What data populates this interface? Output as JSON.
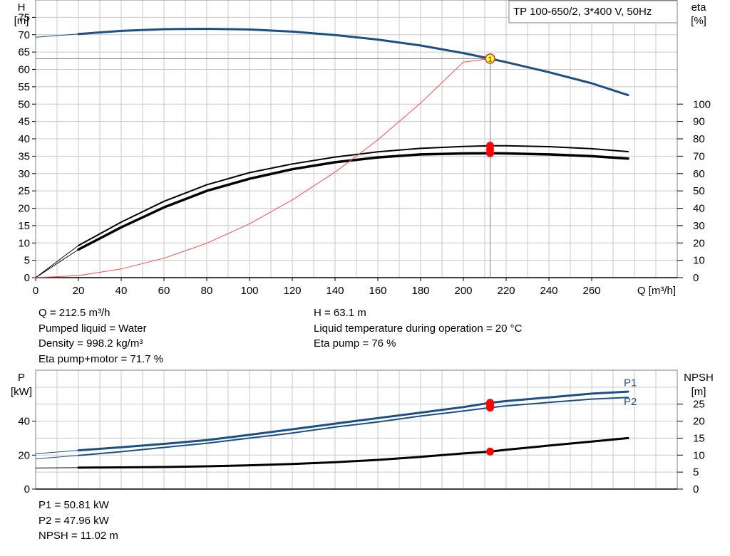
{
  "legend_box": "TP 100-650/2, 3*400 V, 50Hz",
  "colors": {
    "blue": "#1c4f86",
    "black": "#000000",
    "red": "#ff0000",
    "system": "#ff4a4a",
    "op_point": "#ffff33",
    "grid": "#c8c8c8"
  },
  "operating_point_info": {
    "col1": [
      "Q = 212.5 m³/h",
      "Pumped liquid = Water",
      "Density = 998.2 kg/m³",
      "Eta pump+motor = 71.7 %"
    ],
    "col2": [
      "H = 63.1 m",
      "Liquid temperature during operation = 20 °C",
      "Eta pump = 76 %"
    ]
  },
  "power_info": [
    "P1 = 50.81 kW",
    "P2 = 47.96 kW",
    "NPSH = 11.02 m"
  ],
  "chart_data": [
    {
      "type": "line",
      "title": "",
      "x_axis": {
        "label": "Q [m³/h]",
        "range": [
          0,
          300
        ],
        "ticks": [
          0,
          20,
          40,
          60,
          80,
          100,
          120,
          140,
          160,
          180,
          200,
          220,
          240,
          260
        ]
      },
      "y_axis_left": {
        "label_top": "H",
        "label_unit": "[m]",
        "range": [
          0,
          80
        ],
        "ticks": [
          0,
          5,
          10,
          15,
          20,
          25,
          30,
          35,
          40,
          45,
          50,
          55,
          60,
          65,
          70,
          75
        ]
      },
      "y_axis_right": {
        "label_top": "eta",
        "label_unit": "[%]",
        "range": [
          0,
          160
        ],
        "ticks": [
          0,
          10,
          20,
          30,
          40,
          50,
          60,
          70,
          80,
          90,
          100
        ]
      },
      "grid": true,
      "legend": "top-right",
      "series": [
        {
          "axis": "left",
          "color": "blue",
          "width": 3,
          "values": [
            [
              20,
              70.2
            ],
            [
              40,
              71.1
            ],
            [
              60,
              71.6
            ],
            [
              80,
              71.7
            ],
            [
              100,
              71.5
            ],
            [
              120,
              70.9
            ],
            [
              140,
              69.9
            ],
            [
              160,
              68.6
            ],
            [
              180,
              66.9
            ],
            [
              200,
              64.7
            ],
            [
              212.5,
              63.1
            ],
            [
              220,
              62.1
            ],
            [
              240,
              59.2
            ],
            [
              260,
              56.0
            ],
            [
              277,
              52.6
            ]
          ]
        },
        {
          "axis": "left",
          "color": "blue",
          "width": 1,
          "values": [
            [
              0,
              69.3
            ],
            [
              20,
              70.2
            ]
          ]
        },
        {
          "axis": "right",
          "color": "black",
          "width": 2,
          "values": [
            [
              20,
              18.5
            ],
            [
              40,
              32
            ],
            [
              60,
              44
            ],
            [
              80,
              53.5
            ],
            [
              100,
              60.5
            ],
            [
              120,
              65.5
            ],
            [
              140,
              69.5
            ],
            [
              160,
              72.5
            ],
            [
              180,
              74.5
            ],
            [
              200,
              75.6
            ],
            [
              212.5,
              76
            ],
            [
              220,
              76.0
            ],
            [
              240,
              75.5
            ],
            [
              260,
              74.3
            ],
            [
              277,
              72.6
            ]
          ]
        },
        {
          "axis": "right",
          "color": "black",
          "width": 3.5,
          "values": [
            [
              20,
              16.2
            ],
            [
              40,
              29
            ],
            [
              60,
              40.5
            ],
            [
              80,
              50
            ],
            [
              100,
              57
            ],
            [
              120,
              62.5
            ],
            [
              140,
              66.5
            ],
            [
              160,
              69.3
            ],
            [
              180,
              71
            ],
            [
              200,
              71.6
            ],
            [
              212.5,
              71.7
            ],
            [
              220,
              71.6
            ],
            [
              240,
              71
            ],
            [
              260,
              70
            ],
            [
              277,
              68.6
            ]
          ]
        },
        {
          "axis": "right",
          "color": "black",
          "width": 1,
          "values": [
            [
              0,
              0
            ],
            [
              20,
              18.5
            ]
          ]
        },
        {
          "axis": "right",
          "color": "black",
          "width": 1,
          "values": [
            [
              0,
              0
            ],
            [
              20,
              16.2
            ]
          ]
        },
        {
          "axis": "left",
          "color": "system",
          "width": 1,
          "values": [
            [
              0,
              0
            ],
            [
              20,
              0.6
            ],
            [
              40,
              2.5
            ],
            [
              60,
              5.6
            ],
            [
              80,
              9.9
            ],
            [
              100,
              15.5
            ],
            [
              120,
              22.4
            ],
            [
              140,
              30.4
            ],
            [
              160,
              39.7
            ],
            [
              180,
              50.3
            ],
            [
              200,
              62.1
            ],
            [
              212.5,
              63.1
            ]
          ]
        }
      ],
      "operating_lines": {
        "q": 212.5,
        "h": 63.1
      },
      "points": [
        {
          "x": 212.5,
          "y": 63.1,
          "axis": "left",
          "style": "op",
          "label": "1"
        },
        {
          "x": 212.5,
          "y": 76,
          "axis": "right",
          "style": "red"
        },
        {
          "x": 212.5,
          "y": 73.8,
          "axis": "right",
          "style": "red"
        },
        {
          "x": 212.5,
          "y": 71.7,
          "axis": "right",
          "style": "red"
        }
      ]
    },
    {
      "type": "line",
      "title": "",
      "x_axis": {
        "range": [
          0,
          300
        ],
        "ticks": []
      },
      "y_axis_left": {
        "label_top": "P",
        "label_unit": "[kW]",
        "range": [
          0,
          70
        ],
        "ticks": [
          0,
          20,
          40
        ]
      },
      "y_axis_right": {
        "label_top": "NPSH",
        "label_unit": "[m]",
        "range": [
          0,
          35
        ],
        "ticks": [
          0,
          5,
          10,
          15,
          20,
          25
        ]
      },
      "grid": true,
      "series": [
        {
          "name": "P1",
          "axis": "left",
          "color": "blue",
          "width": 3,
          "values": [
            [
              20,
              22.8
            ],
            [
              40,
              24.6
            ],
            [
              60,
              26.6
            ],
            [
              80,
              28.8
            ],
            [
              100,
              32
            ],
            [
              120,
              35.2
            ],
            [
              140,
              38.5
            ],
            [
              160,
              41.8
            ],
            [
              180,
              45
            ],
            [
              200,
              48.3
            ],
            [
              212.5,
              50.81
            ],
            [
              220,
              51.8
            ],
            [
              240,
              54
            ],
            [
              260,
              56.2
            ],
            [
              277,
              57.4
            ]
          ]
        },
        {
          "name": "P2",
          "axis": "left",
          "color": "blue",
          "width": 2,
          "values": [
            [
              20,
              19.8
            ],
            [
              40,
              22
            ],
            [
              60,
              24.5
            ],
            [
              80,
              27
            ],
            [
              100,
              30
            ],
            [
              120,
              33
            ],
            [
              140,
              36.5
            ],
            [
              160,
              39.5
            ],
            [
              180,
              43
            ],
            [
              200,
              46
            ],
            [
              212.5,
              47.96
            ],
            [
              220,
              49
            ],
            [
              240,
              51
            ],
            [
              260,
              53
            ],
            [
              277,
              54
            ]
          ]
        },
        {
          "axis": "left",
          "color": "blue",
          "width": 1,
          "values": [
            [
              0,
              20.8
            ],
            [
              20,
              22.8
            ]
          ]
        },
        {
          "axis": "left",
          "color": "blue",
          "width": 1,
          "values": [
            [
              0,
              17.8
            ],
            [
              20,
              19.8
            ]
          ]
        },
        {
          "axis": "right",
          "color": "black",
          "width": 3,
          "values": [
            [
              20,
              6.3
            ],
            [
              40,
              6.4
            ],
            [
              60,
              6.5
            ],
            [
              80,
              6.7
            ],
            [
              100,
              7
            ],
            [
              120,
              7.4
            ],
            [
              140,
              7.9
            ],
            [
              160,
              8.6
            ],
            [
              180,
              9.5
            ],
            [
              200,
              10.5
            ],
            [
              212.5,
              11.02
            ],
            [
              220,
              11.6
            ],
            [
              240,
              12.8
            ],
            [
              260,
              14
            ],
            [
              277,
              15
            ]
          ]
        },
        {
          "axis": "right",
          "color": "black",
          "width": 1,
          "values": [
            [
              0,
              6.2
            ],
            [
              20,
              6.3
            ]
          ]
        }
      ],
      "labels": [
        {
          "text": "P1",
          "x": 275,
          "y": 60.5,
          "axis": "left"
        },
        {
          "text": "P2",
          "x": 275,
          "y": 49.5,
          "axis": "left"
        }
      ],
      "points": [
        {
          "x": 212.5,
          "y": 50.81,
          "axis": "left",
          "style": "red"
        },
        {
          "x": 212.5,
          "y": 49.4,
          "axis": "left",
          "style": "red"
        },
        {
          "x": 212.5,
          "y": 47.96,
          "axis": "left",
          "style": "red"
        },
        {
          "x": 212.5,
          "y": 11.02,
          "axis": "right",
          "style": "red"
        }
      ]
    }
  ]
}
